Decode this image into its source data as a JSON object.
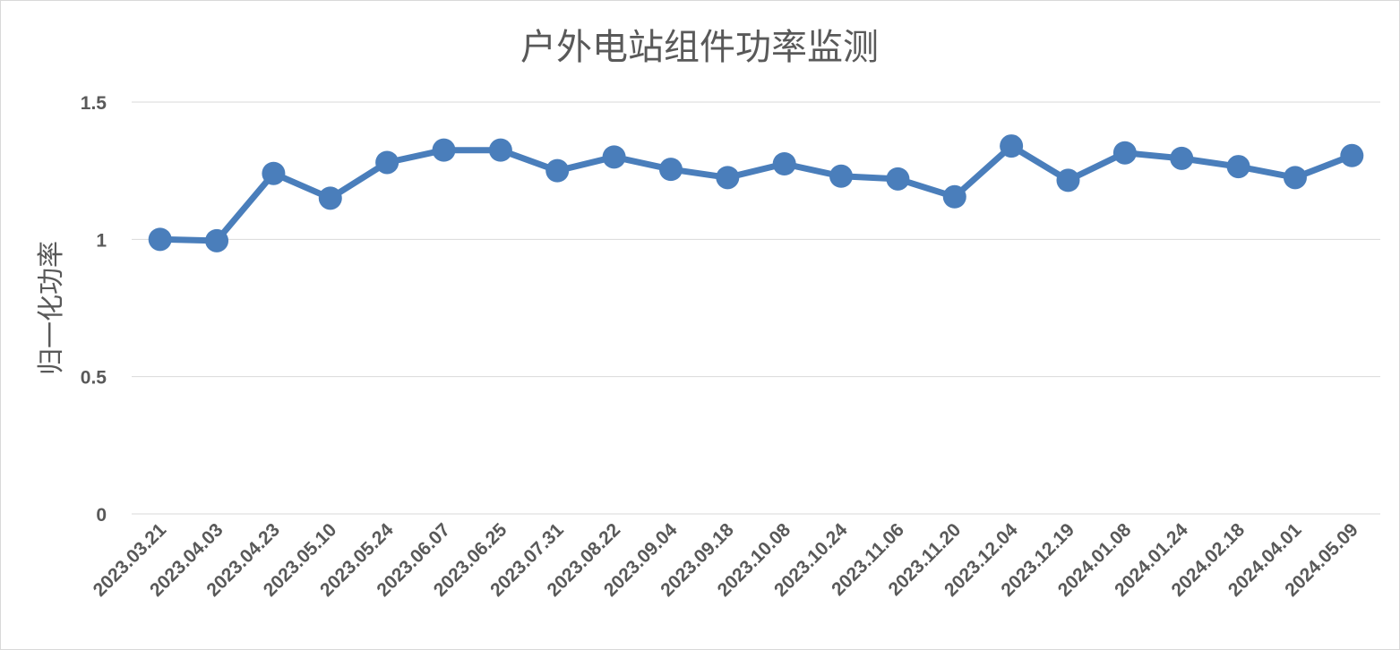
{
  "chart_data": {
    "type": "line",
    "title": "户外电站组件功率监测",
    "xlabel": "",
    "ylabel": "归一化功率",
    "ylim": [
      0,
      1.5
    ],
    "yticks": [
      "0",
      "0.5",
      "1",
      "1.5"
    ],
    "grid": true,
    "legend": "none",
    "categories": [
      "2023.03.21",
      "2023.04.03",
      "2023.04.23",
      "2023.05.10",
      "2023.05.24",
      "2023.06.07",
      "2023.06.25",
      "2023.07.31",
      "2023.08.22",
      "2023.09.04",
      "2023.09.18",
      "2023.10.08",
      "2023.10.24",
      "2023.11.06",
      "2023.11.20",
      "2023.12.04",
      "2023.12.19",
      "2024.01.08",
      "2024.01.24",
      "2024.02.18",
      "2024.04.01",
      "2024.05.09"
    ],
    "series": [
      {
        "values": [
          1.0,
          0.995,
          1.24,
          1.15,
          1.28,
          1.325,
          1.325,
          1.25,
          1.3,
          1.255,
          1.225,
          1.275,
          1.23,
          1.22,
          1.155,
          1.34,
          1.215,
          1.315,
          1.295,
          1.265,
          1.225,
          1.305
        ],
        "color": "#4a7ebb"
      }
    ]
  }
}
